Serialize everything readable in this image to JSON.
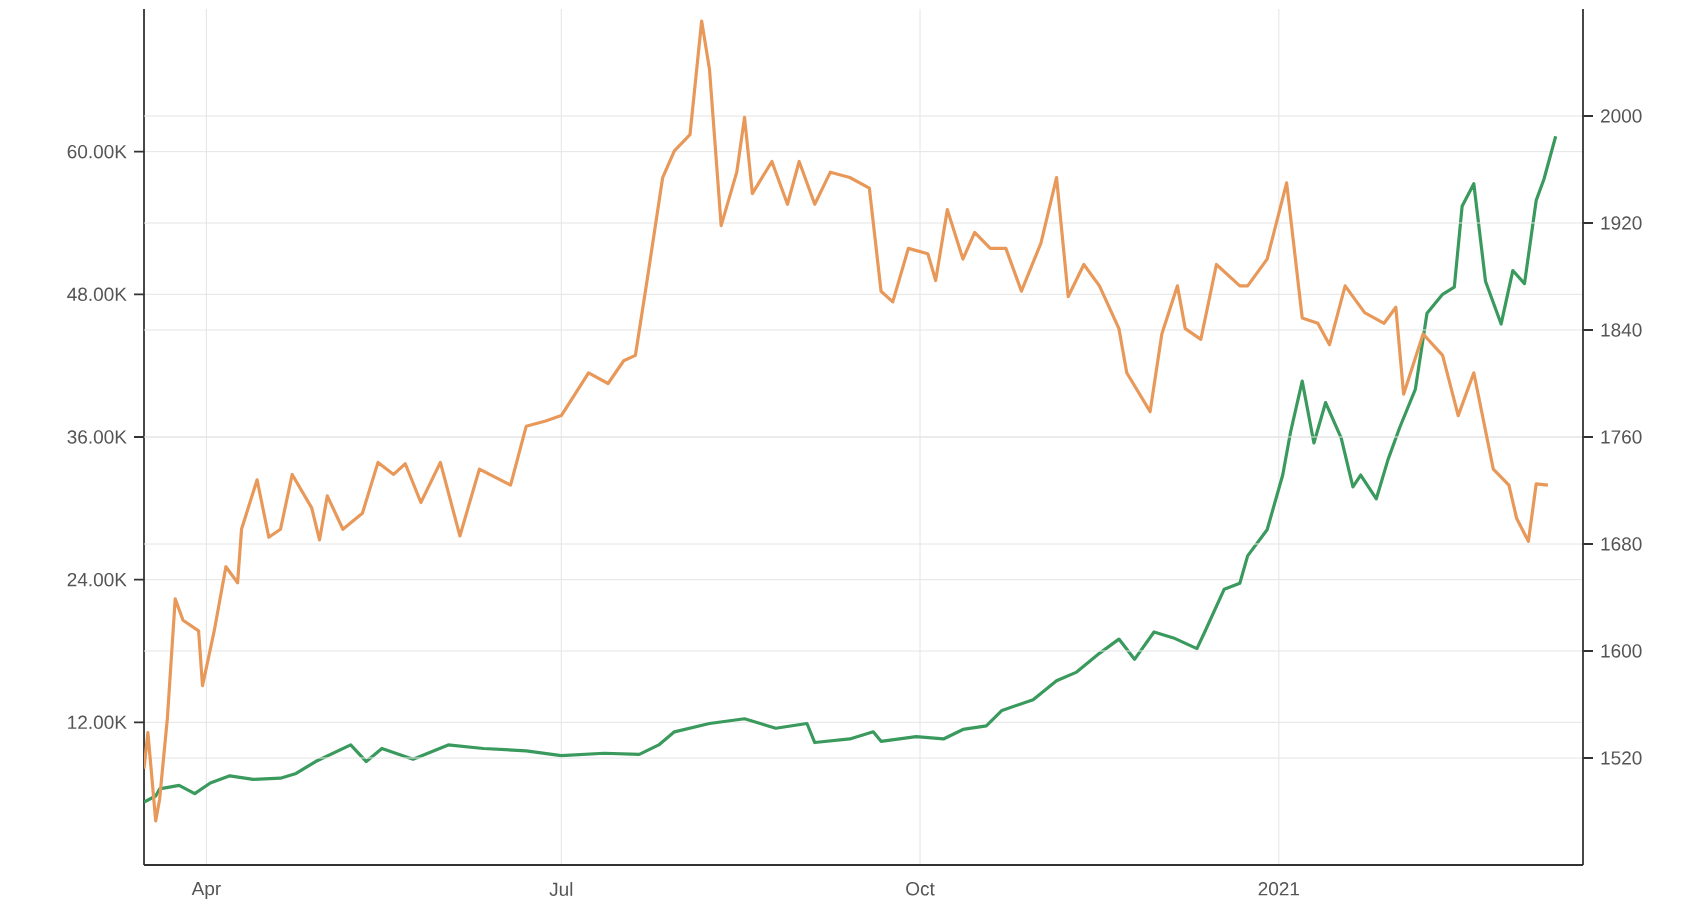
{
  "chart_data": {
    "type": "line",
    "grid": true,
    "marker": "none",
    "line_style": "solid",
    "xlim": [
      "2020-03-16",
      "2021-03-20"
    ],
    "xticks": [
      {
        "value": "2020-04-01",
        "label": "Apr"
      },
      {
        "value": "2020-07-01",
        "label": "Jul"
      },
      {
        "value": "2020-10-01",
        "label": "Oct"
      },
      {
        "value": "2021-01-01",
        "label": "2021"
      }
    ],
    "ylim": [
      0,
      72000
    ],
    "yticks": [
      {
        "value": 12000,
        "label": "12.00K"
      },
      {
        "value": 24000,
        "label": "24.00K"
      },
      {
        "value": 36000,
        "label": "36.00K"
      },
      {
        "value": 48000,
        "label": "48.00K"
      },
      {
        "value": 60000,
        "label": "60.00K"
      }
    ],
    "y2lim": [
      1440,
      2080
    ],
    "y2ticks": [
      1520,
      1600,
      1680,
      1760,
      1840,
      1920,
      2000
    ],
    "series": [
      {
        "color": "#3a9a5e",
        "x": [
          "2020-03-16",
          "2020-03-19",
          "2020-03-20",
          "2020-03-25",
          "2020-03-29",
          "2020-04-02",
          "2020-04-07",
          "2020-04-13",
          "2020-04-20",
          "2020-04-24",
          "2020-04-29",
          "2020-05-08",
          "2020-05-12",
          "2020-05-16",
          "2020-05-24",
          "2020-06-02",
          "2020-06-11",
          "2020-06-22",
          "2020-07-01",
          "2020-07-12",
          "2020-07-21",
          "2020-07-26",
          "2020-07-30",
          "2020-08-08",
          "2020-08-17",
          "2020-08-25",
          "2020-09-02",
          "2020-09-04",
          "2020-09-13",
          "2020-09-19",
          "2020-09-21",
          "2020-09-30",
          "2020-10-07",
          "2020-10-12",
          "2020-10-18",
          "2020-10-22",
          "2020-10-30",
          "2020-11-05",
          "2020-11-10",
          "2020-11-16",
          "2020-11-21",
          "2020-11-25",
          "2020-11-30",
          "2020-12-05",
          "2020-12-11",
          "2020-12-13",
          "2020-12-18",
          "2020-12-22",
          "2020-12-24",
          "2020-12-29",
          "2021-01-02",
          "2021-01-04",
          "2021-01-07",
          "2021-01-10",
          "2021-01-13",
          "2021-01-17",
          "2021-01-20",
          "2021-01-22",
          "2021-01-26",
          "2021-01-29",
          "2021-02-01",
          "2021-02-05",
          "2021-02-08",
          "2021-02-12",
          "2021-02-15",
          "2021-02-17",
          "2021-02-20",
          "2021-02-23",
          "2021-02-27",
          "2021-03-02",
          "2021-03-05",
          "2021-03-08",
          "2021-03-10",
          "2021-03-13"
        ],
        "values": [
          5300,
          5800,
          6400,
          6700,
          6000,
          6900,
          7500,
          7200,
          7300,
          7700,
          8700,
          10100,
          8700,
          9800,
          8900,
          10100,
          9800,
          9600,
          9200,
          9400,
          9300,
          10100,
          11200,
          11900,
          12300,
          11500,
          11900,
          10300,
          10600,
          11200,
          10400,
          10800,
          10600,
          11400,
          11700,
          13000,
          13900,
          15500,
          16200,
          17800,
          19000,
          17300,
          19600,
          19100,
          18200,
          19600,
          23200,
          23700,
          26000,
          28200,
          32800,
          36400,
          40700,
          35500,
          38900,
          35900,
          31800,
          32800,
          30800,
          34100,
          36800,
          40000,
          46400,
          48000,
          48600,
          55400,
          57300,
          49100,
          45500,
          50000,
          48900,
          55900,
          57700,
          61300
        ]
      },
      {
        "color": "#e8995a",
        "axis": "y2",
        "x": [
          "2020-03-16",
          "2020-03-17",
          "2020-03-19",
          "2020-03-20",
          "2020-03-22",
          "2020-03-24",
          "2020-03-26",
          "2020-03-30",
          "2020-03-31",
          "2020-04-03",
          "2020-04-06",
          "2020-04-09",
          "2020-04-10",
          "2020-04-14",
          "2020-04-17",
          "2020-04-20",
          "2020-04-23",
          "2020-04-28",
          "2020-04-30",
          "2020-05-02",
          "2020-05-06",
          "2020-05-11",
          "2020-05-15",
          "2020-05-19",
          "2020-05-22",
          "2020-05-26",
          "2020-05-31",
          "2020-06-05",
          "2020-06-10",
          "2020-06-18",
          "2020-06-22",
          "2020-06-27",
          "2020-07-01",
          "2020-07-08",
          "2020-07-13",
          "2020-07-17",
          "2020-07-20",
          "2020-07-23",
          "2020-07-27",
          "2020-07-30",
          "2020-08-03",
          "2020-08-06",
          "2020-08-08",
          "2020-08-11",
          "2020-08-15",
          "2020-08-17",
          "2020-08-19",
          "2020-08-24",
          "2020-08-28",
          "2020-08-31",
          "2020-09-04",
          "2020-09-08",
          "2020-09-13",
          "2020-09-18",
          "2020-09-21",
          "2020-09-24",
          "2020-09-28",
          "2020-10-03",
          "2020-10-05",
          "2020-10-08",
          "2020-10-12",
          "2020-10-15",
          "2020-10-19",
          "2020-10-23",
          "2020-10-27",
          "2020-11-01",
          "2020-11-05",
          "2020-11-08",
          "2020-11-12",
          "2020-11-16",
          "2020-11-21",
          "2020-11-23",
          "2020-11-29",
          "2020-12-02",
          "2020-12-06",
          "2020-12-08",
          "2020-12-12",
          "2020-12-16",
          "2020-12-22",
          "2020-12-24",
          "2020-12-29",
          "2021-01-03",
          "2021-01-07",
          "2021-01-11",
          "2021-01-14",
          "2021-01-18",
          "2021-01-23",
          "2021-01-28",
          "2021-01-31",
          "2021-02-02",
          "2021-02-07",
          "2021-02-12",
          "2021-02-16",
          "2021-02-20",
          "2021-02-25",
          "2021-03-01",
          "2021-03-03",
          "2021-03-06",
          "2021-03-08",
          "2021-03-11"
        ],
        "values": [
          1512,
          1539,
          1473,
          1489,
          1550,
          1639,
          1623,
          1615,
          1574,
          1615,
          1663,
          1651,
          1691,
          1728,
          1685,
          1691,
          1732,
          1707,
          1683,
          1716,
          1691,
          1703,
          1741,
          1732,
          1740,
          1711,
          1741,
          1686,
          1736,
          1724,
          1768,
          1772,
          1776,
          1808,
          1800,
          1817,
          1821,
          1877,
          1954,
          1974,
          1986,
          2071,
          2035,
          1918,
          1958,
          1999,
          1942,
          1966,
          1934,
          1966,
          1934,
          1958,
          1954,
          1946,
          1869,
          1861,
          1901,
          1897,
          1877,
          1930,
          1893,
          1913,
          1901,
          1901,
          1869,
          1905,
          1954,
          1865,
          1889,
          1873,
          1841,
          1808,
          1779,
          1837,
          1873,
          1841,
          1833,
          1889,
          1873,
          1873,
          1893,
          1950,
          1849,
          1845,
          1829,
          1873,
          1853,
          1845,
          1857,
          1792,
          1837,
          1821,
          1776,
          1808,
          1736,
          1724,
          1699,
          1682,
          1725,
          1724
        ]
      }
    ]
  }
}
